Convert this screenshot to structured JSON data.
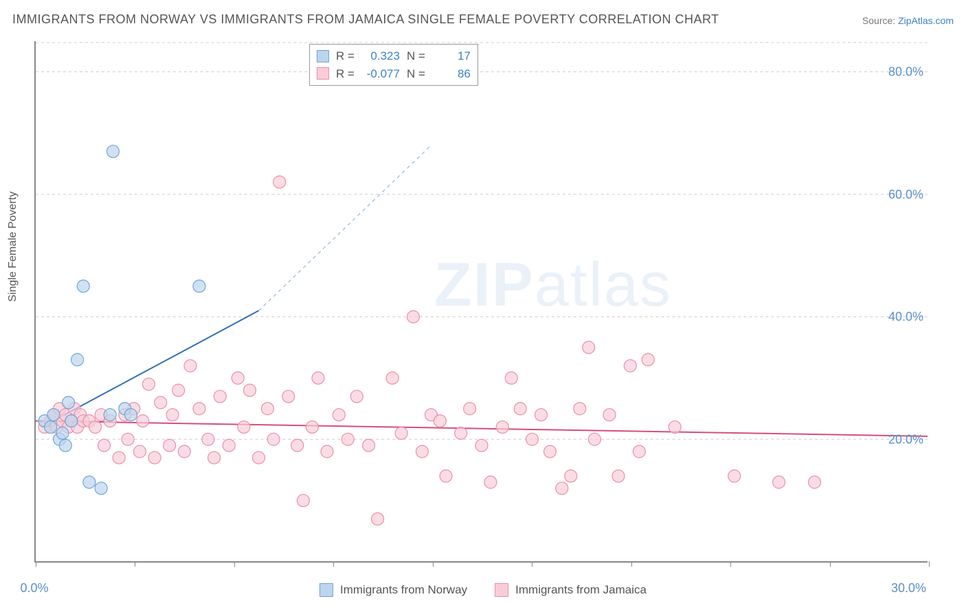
{
  "title": "IMMIGRANTS FROM NORWAY VS IMMIGRANTS FROM JAMAICA SINGLE FEMALE POVERTY CORRELATION CHART",
  "source_prefix": "Source: ",
  "source_name": "ZipAtlas.com",
  "watermark_a": "ZIP",
  "watermark_b": "atlas",
  "chart": {
    "type": "scatter",
    "xlim": [
      0,
      30
    ],
    "ylim": [
      0,
      85
    ],
    "x_ticks": [
      0,
      3.33,
      6.67,
      10,
      13.33,
      16.67,
      20,
      23.33,
      26.67,
      30
    ],
    "y_gridlines": [
      20,
      40,
      60,
      80
    ],
    "y_grid_labels": [
      "20.0%",
      "40.0%",
      "60.0%",
      "80.0%"
    ],
    "x_label_min": "0.0%",
    "x_label_max": "30.0%",
    "y_axis_title": "Single Female Poverty",
    "grid_color": "#cccccc",
    "axis_color": "#888888",
    "background_color": "#ffffff",
    "marker_radius": 9,
    "marker_stroke_width": 1.2,
    "line_width": 2,
    "font_size_title": 18,
    "font_size_axis": 18,
    "font_size_legend": 17,
    "series": {
      "norway": {
        "label": "Immigrants from Norway",
        "color_fill": "#bcd5ed",
        "color_stroke": "#6fa3d6",
        "line_color": "#2e6fb4",
        "trend": {
          "x1": 0.2,
          "y1": 22,
          "x2_solid": 7.5,
          "y2_solid": 41,
          "x2_dash": 13.3,
          "y2_dash": 68
        },
        "R": "0.323",
        "N": "17",
        "points": [
          [
            0.3,
            23
          ],
          [
            0.5,
            22
          ],
          [
            0.6,
            24
          ],
          [
            0.8,
            20
          ],
          [
            0.9,
            21
          ],
          [
            1.0,
            19
          ],
          [
            1.2,
            23
          ],
          [
            1.4,
            33
          ],
          [
            1.6,
            45
          ],
          [
            1.8,
            13
          ],
          [
            2.2,
            12
          ],
          [
            2.5,
            24
          ],
          [
            2.6,
            67
          ],
          [
            3.0,
            25
          ],
          [
            3.2,
            24
          ],
          [
            5.5,
            45
          ],
          [
            1.1,
            26
          ]
        ]
      },
      "jamaica": {
        "label": "Immigrants from Jamaica",
        "color_fill": "#f8cdd8",
        "color_stroke": "#e98fab",
        "line_color": "#d64d7a",
        "trend": {
          "x1": 0,
          "y1": 23,
          "x2": 30,
          "y2": 20.5
        },
        "R": "-0.077",
        "N": "86",
        "points": [
          [
            0.3,
            22
          ],
          [
            0.5,
            23
          ],
          [
            0.6,
            24
          ],
          [
            0.7,
            22
          ],
          [
            0.8,
            25
          ],
          [
            0.9,
            23
          ],
          [
            1.0,
            24
          ],
          [
            1.1,
            22
          ],
          [
            1.2,
            23
          ],
          [
            1.3,
            25
          ],
          [
            1.4,
            22
          ],
          [
            1.5,
            24
          ],
          [
            1.6,
            23
          ],
          [
            1.8,
            23
          ],
          [
            2.0,
            22
          ],
          [
            2.2,
            24
          ],
          [
            2.3,
            19
          ],
          [
            2.5,
            23
          ],
          [
            2.8,
            17
          ],
          [
            3.0,
            24
          ],
          [
            3.1,
            20
          ],
          [
            3.3,
            25
          ],
          [
            3.5,
            18
          ],
          [
            3.6,
            23
          ],
          [
            3.8,
            29
          ],
          [
            4.0,
            17
          ],
          [
            4.2,
            26
          ],
          [
            4.5,
            19
          ],
          [
            4.6,
            24
          ],
          [
            4.8,
            28
          ],
          [
            5.0,
            18
          ],
          [
            5.2,
            32
          ],
          [
            5.5,
            25
          ],
          [
            5.8,
            20
          ],
          [
            6.0,
            17
          ],
          [
            6.2,
            27
          ],
          [
            6.5,
            19
          ],
          [
            6.8,
            30
          ],
          [
            7.0,
            22
          ],
          [
            7.2,
            28
          ],
          [
            7.5,
            17
          ],
          [
            7.8,
            25
          ],
          [
            8.0,
            20
          ],
          [
            8.2,
            62
          ],
          [
            8.5,
            27
          ],
          [
            8.8,
            19
          ],
          [
            9.0,
            10
          ],
          [
            9.3,
            22
          ],
          [
            9.5,
            30
          ],
          [
            9.8,
            18
          ],
          [
            10.2,
            24
          ],
          [
            10.5,
            20
          ],
          [
            10.8,
            27
          ],
          [
            11.2,
            19
          ],
          [
            11.5,
            7
          ],
          [
            12.0,
            30
          ],
          [
            12.3,
            21
          ],
          [
            12.7,
            40
          ],
          [
            13.0,
            18
          ],
          [
            13.3,
            24
          ],
          [
            13.6,
            23
          ],
          [
            13.8,
            14
          ],
          [
            14.3,
            21
          ],
          [
            14.6,
            25
          ],
          [
            15.0,
            19
          ],
          [
            15.3,
            13
          ],
          [
            15.7,
            22
          ],
          [
            16.0,
            30
          ],
          [
            16.3,
            25
          ],
          [
            16.7,
            20
          ],
          [
            17.0,
            24
          ],
          [
            17.3,
            18
          ],
          [
            17.7,
            12
          ],
          [
            18.0,
            14
          ],
          [
            18.3,
            25
          ],
          [
            18.6,
            35
          ],
          [
            18.8,
            20
          ],
          [
            19.3,
            24
          ],
          [
            19.6,
            14
          ],
          [
            20.0,
            32
          ],
          [
            20.3,
            18
          ],
          [
            20.6,
            33
          ],
          [
            23.5,
            14
          ],
          [
            25.0,
            13
          ],
          [
            26.2,
            13
          ],
          [
            21.5,
            22
          ]
        ]
      }
    }
  }
}
